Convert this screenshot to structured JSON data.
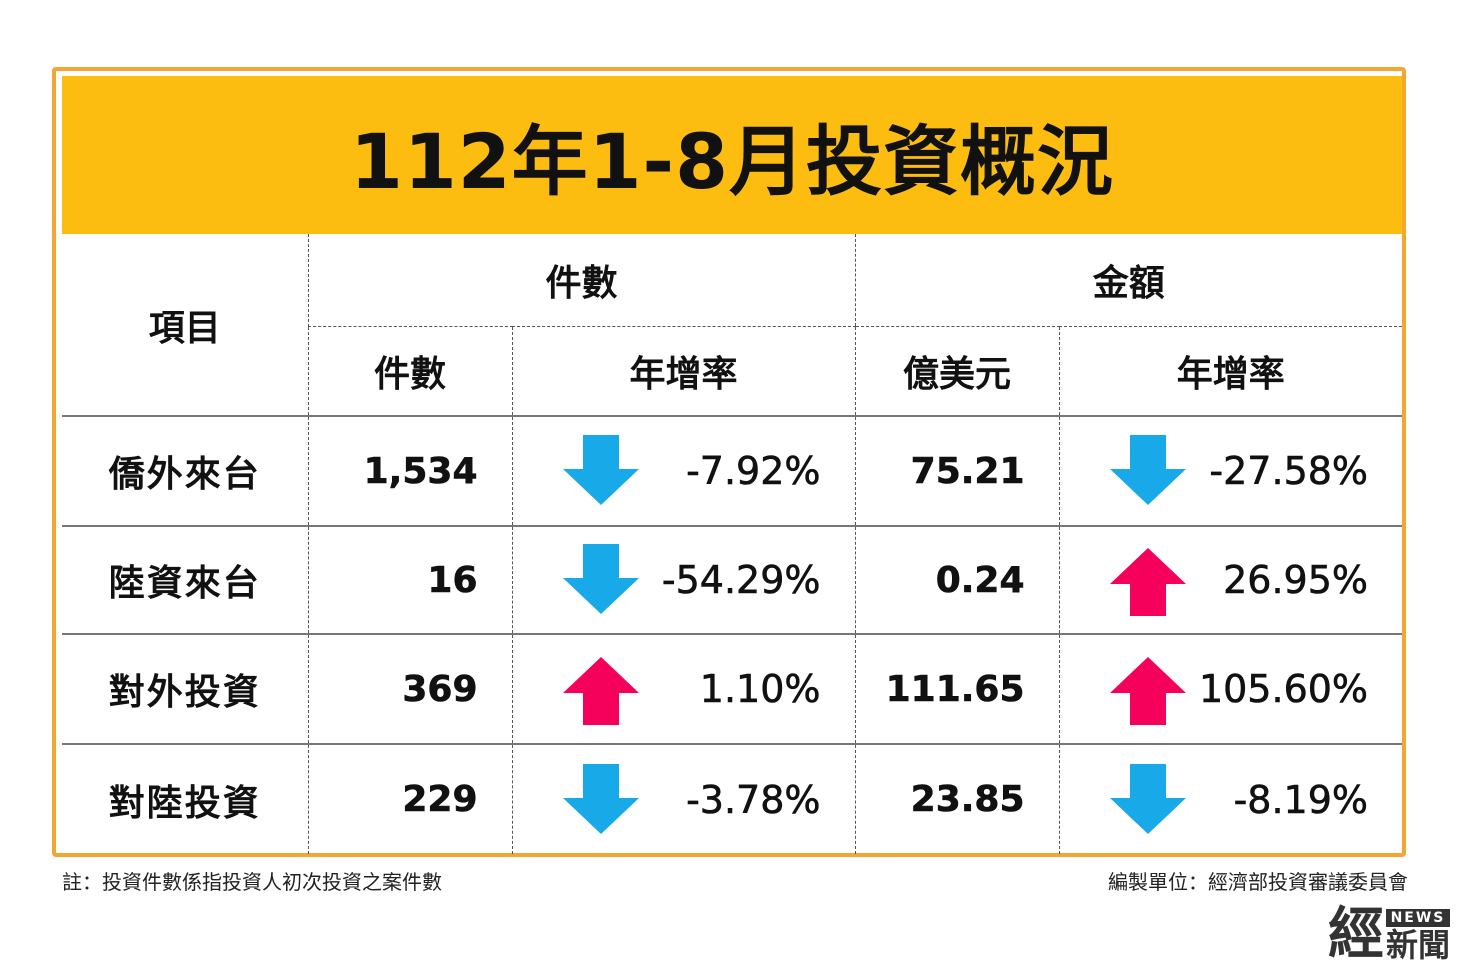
{
  "title": "112年1-8月投資概況",
  "chart_data": {
    "type": "table",
    "headers": {
      "item": "項目",
      "count_group": "件數",
      "amount_group": "金額",
      "count": "件數",
      "count_growth": "年增率",
      "amount": "億美元",
      "amount_growth": "年增率"
    },
    "rows": [
      {
        "item": "僑外來台",
        "count": "1,534",
        "count_growth": "-7.92%",
        "count_dir": "down",
        "amount": "75.21",
        "amount_growth": "-27.58%",
        "amount_dir": "down"
      },
      {
        "item": "陸資來台",
        "count": "16",
        "count_growth": "-54.29%",
        "count_dir": "down",
        "amount": "0.24",
        "amount_growth": "26.95%",
        "amount_dir": "up"
      },
      {
        "item": "對外投資",
        "count": "369",
        "count_growth": "1.10%",
        "count_dir": "up",
        "amount": "111.65",
        "amount_growth": "105.60%",
        "amount_dir": "up"
      },
      {
        "item": "對陸投資",
        "count": "229",
        "count_growth": "-3.78%",
        "count_dir": "down",
        "amount": "23.85",
        "amount_growth": "-8.19%",
        "amount_dir": "down"
      }
    ]
  },
  "colors": {
    "title_bg": "#fcbd10",
    "frame": "#f4a633",
    "arrow_up": "#f5005a",
    "arrow_down": "#17a9e8"
  },
  "footer": {
    "note": "註：投資件數係指投資人初次投資之案件數",
    "source": "編製單位：經濟部投資審議委員會"
  },
  "logo": {
    "big": "經",
    "news": "NEWS",
    "small": "新聞"
  }
}
